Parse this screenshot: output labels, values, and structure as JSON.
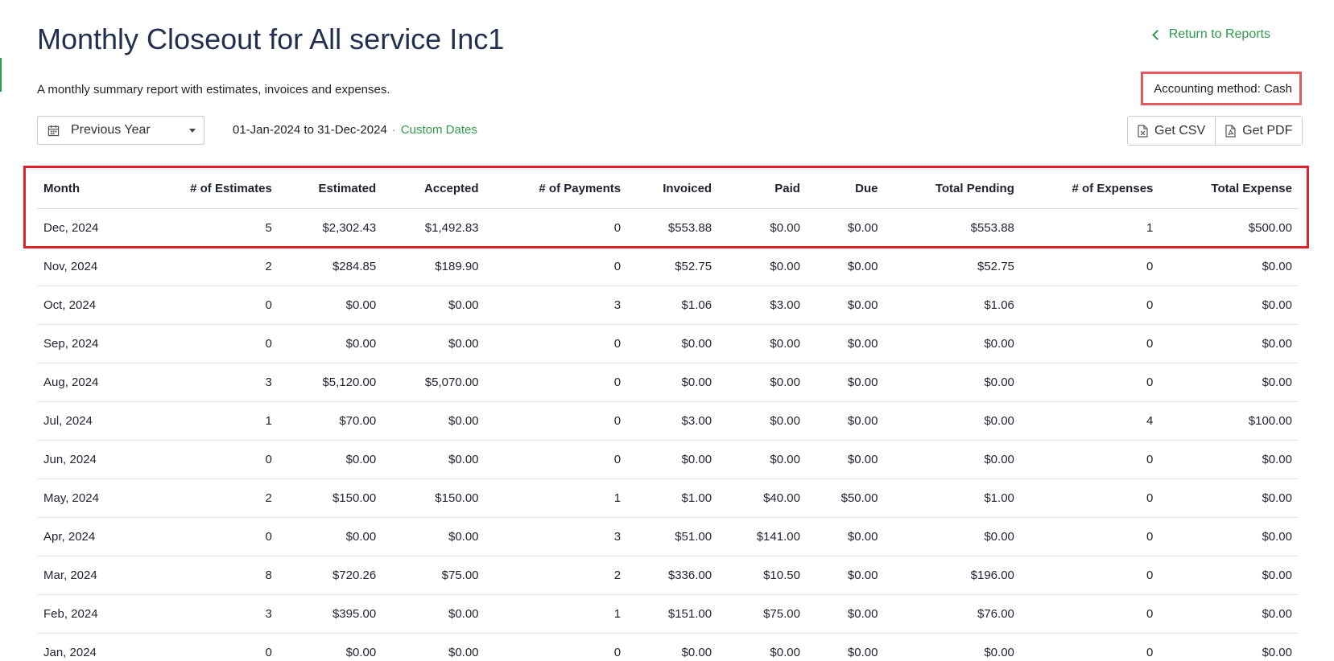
{
  "header": {
    "title": "Monthly Closeout for All service Inc1",
    "return_label": "Return to Reports",
    "subtitle": "A monthly summary report with estimates, invoices and expenses.",
    "accounting_method": "Accounting method: Cash"
  },
  "filters": {
    "period_label": "Previous Year",
    "date_range": "01-Jan-2024 to 31-Dec-2024",
    "separator": "·",
    "custom_dates_label": "Custom Dates"
  },
  "exports": {
    "csv_label": "Get CSV",
    "pdf_label": "Get PDF"
  },
  "table": {
    "columns": [
      "Month",
      "# of Estimates",
      "Estimated",
      "Accepted",
      "# of Payments",
      "Invoiced",
      "Paid",
      "Due",
      "Total Pending",
      "# of Expenses",
      "Total Expense"
    ],
    "rows": [
      [
        "Dec, 2024",
        "5",
        "$2,302.43",
        "$1,492.83",
        "0",
        "$553.88",
        "$0.00",
        "$0.00",
        "$553.88",
        "1",
        "$500.00"
      ],
      [
        "Nov, 2024",
        "2",
        "$284.85",
        "$189.90",
        "0",
        "$52.75",
        "$0.00",
        "$0.00",
        "$52.75",
        "0",
        "$0.00"
      ],
      [
        "Oct, 2024",
        "0",
        "$0.00",
        "$0.00",
        "3",
        "$1.06",
        "$3.00",
        "$0.00",
        "$1.06",
        "0",
        "$0.00"
      ],
      [
        "Sep, 2024",
        "0",
        "$0.00",
        "$0.00",
        "0",
        "$0.00",
        "$0.00",
        "$0.00",
        "$0.00",
        "0",
        "$0.00"
      ],
      [
        "Aug, 2024",
        "3",
        "$5,120.00",
        "$5,070.00",
        "0",
        "$0.00",
        "$0.00",
        "$0.00",
        "$0.00",
        "0",
        "$0.00"
      ],
      [
        "Jul, 2024",
        "1",
        "$70.00",
        "$0.00",
        "0",
        "$3.00",
        "$0.00",
        "$0.00",
        "$0.00",
        "4",
        "$100.00"
      ],
      [
        "Jun, 2024",
        "0",
        "$0.00",
        "$0.00",
        "0",
        "$0.00",
        "$0.00",
        "$0.00",
        "$0.00",
        "0",
        "$0.00"
      ],
      [
        "May, 2024",
        "2",
        "$150.00",
        "$150.00",
        "1",
        "$1.00",
        "$40.00",
        "$50.00",
        "$1.00",
        "0",
        "$0.00"
      ],
      [
        "Apr, 2024",
        "0",
        "$0.00",
        "$0.00",
        "3",
        "$51.00",
        "$141.00",
        "$0.00",
        "$0.00",
        "0",
        "$0.00"
      ],
      [
        "Mar, 2024",
        "8",
        "$720.26",
        "$75.00",
        "2",
        "$336.00",
        "$10.50",
        "$0.00",
        "$196.00",
        "0",
        "$0.00"
      ],
      [
        "Feb, 2024",
        "3",
        "$395.00",
        "$0.00",
        "1",
        "$151.00",
        "$75.00",
        "$0.00",
        "$76.00",
        "0",
        "$0.00"
      ],
      [
        "Jan, 2024",
        "0",
        "$0.00",
        "$0.00",
        "0",
        "$0.00",
        "$0.00",
        "$0.00",
        "$0.00",
        "0",
        "$0.00"
      ]
    ]
  },
  "icons": {
    "return": "chevron-left-icon",
    "period": "calendar-icon",
    "dropdown": "caret-down-icon",
    "csv": "excel-file-icon",
    "pdf": "pdf-file-icon"
  },
  "colors": {
    "accent_green": "#2e9b4d",
    "title_navy": "#22304f",
    "highlight_red": "#e0202a",
    "highlight_salmon": "#e05c5c"
  }
}
